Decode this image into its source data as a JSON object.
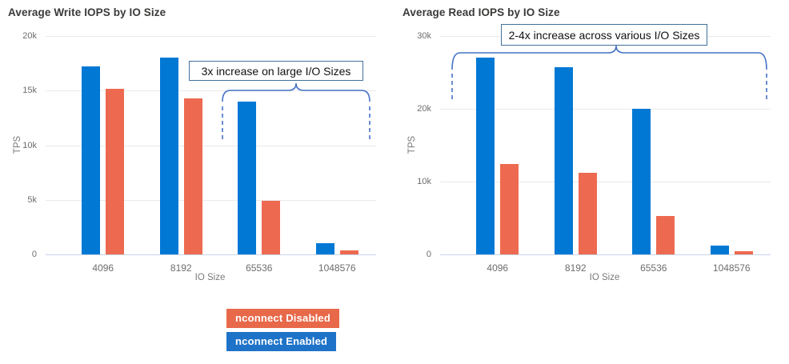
{
  "chart_data": [
    {
      "type": "bar",
      "title": "Average Write IOPS by IO Size",
      "xlabel": "IO Size",
      "ylabel": "TPS",
      "ylim": [
        0,
        20000
      ],
      "yticks": [
        "20k",
        "15k",
        "10k",
        "5k",
        "0"
      ],
      "grid": true,
      "legend_position": "bottom",
      "categories": [
        "4096",
        "8192",
        "65536",
        "1048576"
      ],
      "series": [
        {
          "name": "nconnect Enabled",
          "color": "#0078d4",
          "values": [
            17200,
            18000,
            14000,
            1000
          ]
        },
        {
          "name": "nconnect Disabled",
          "color": "#ed6a50",
          "values": [
            15200,
            14300,
            4900,
            350
          ]
        }
      ],
      "annotation": "3x increase on large I/O Sizes"
    },
    {
      "type": "bar",
      "title": "Average Read IOPS by IO Size",
      "xlabel": "IO Size",
      "ylabel": "TPS",
      "ylim": [
        0,
        30000
      ],
      "yticks": [
        "30k",
        "20k",
        "10k",
        "0"
      ],
      "grid": true,
      "legend_position": "bottom",
      "categories": [
        "4096",
        "8192",
        "65536",
        "1048576"
      ],
      "series": [
        {
          "name": "nconnect Enabled",
          "color": "#0078d4",
          "values": [
            27000,
            25700,
            20000,
            1200
          ]
        },
        {
          "name": "nconnect Disabled",
          "color": "#ed6a50",
          "values": [
            12400,
            11200,
            5300,
            400
          ]
        }
      ],
      "annotation": "2-4x increase across various I/O Sizes"
    }
  ],
  "legend": {
    "items": [
      {
        "label": "nconnect Disabled",
        "color": "#e8684a"
      },
      {
        "label": "nconnect Enabled",
        "color": "#1e73c8"
      }
    ]
  },
  "style": {
    "accent_blue": "#0078d4",
    "accent_orange": "#ed6a50",
    "brace_blue": "#4472c4",
    "callout_border": "#41719c"
  }
}
